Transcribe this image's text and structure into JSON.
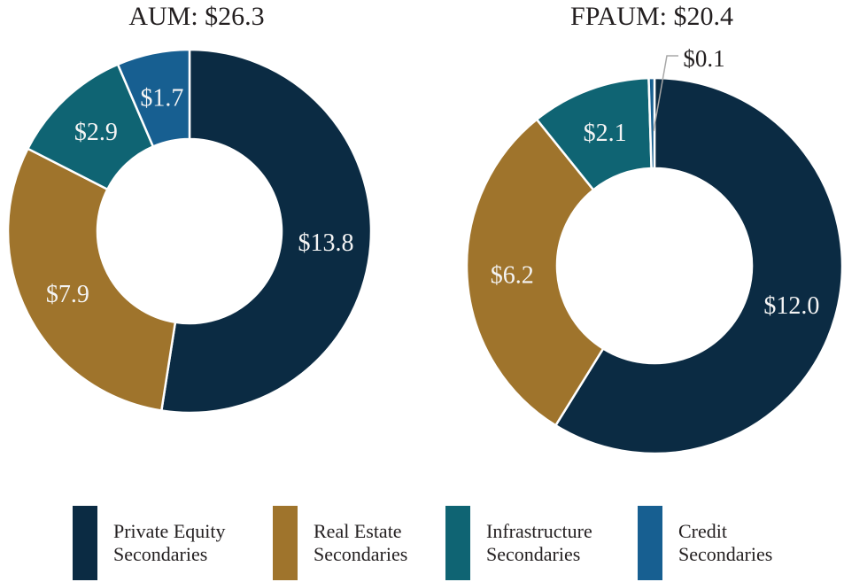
{
  "chart_data": [
    {
      "type": "donut",
      "title": "AUM: $26.3",
      "total": 26.3,
      "start_angle_deg": 0,
      "direction": "clockwise",
      "segments": [
        {
          "label": "Private Equity Secondaries",
          "value": 13.8,
          "display": "$13.8",
          "color": "#0b2b43",
          "label_color": "#f4f4f4"
        },
        {
          "label": "Real Estate Secondaries",
          "value": 7.9,
          "display": "$7.9",
          "color": "#9f742c",
          "label_color": "#f4f4f4"
        },
        {
          "label": "Infrastructure Secondaries",
          "value": 2.9,
          "display": "$2.9",
          "color": "#0f6473",
          "label_color": "#f4f4f4"
        },
        {
          "label": "Credit Secondaries",
          "value": 1.7,
          "display": "$1.7",
          "color": "#175f91",
          "label_color": "#f4f4f4"
        }
      ]
    },
    {
      "type": "donut",
      "title": "FPAUM: $20.4",
      "total": 20.4,
      "start_angle_deg": 0,
      "direction": "clockwise",
      "segments": [
        {
          "label": "Private Equity Secondaries",
          "value": 12.0,
          "display": "$12.0",
          "color": "#0b2b43",
          "label_color": "#f4f4f4"
        },
        {
          "label": "Real Estate Secondaries",
          "value": 6.2,
          "display": "$6.2",
          "color": "#9f742c",
          "label_color": "#f4f4f4"
        },
        {
          "label": "Infrastructure Secondaries",
          "value": 2.1,
          "display": "$2.1",
          "color": "#0f6473",
          "label_color": "#f4f4f4"
        },
        {
          "label": "Credit Secondaries",
          "value": 0.1,
          "display": "$0.1",
          "color": "#175f91",
          "label_color": "#231f20",
          "label_outside": true
        }
      ]
    }
  ],
  "legend": {
    "items": [
      {
        "line1": "Private Equity",
        "line2": "Secondaries",
        "color": "#0b2b43"
      },
      {
        "line1": "Real Estate",
        "line2": "Secondaries",
        "color": "#9f742c"
      },
      {
        "line1": "Infrastructure",
        "line2": "Secondaries",
        "color": "#0f6473"
      },
      {
        "line1": "Credit",
        "line2": "Secondaries",
        "color": "#175f91"
      }
    ]
  }
}
